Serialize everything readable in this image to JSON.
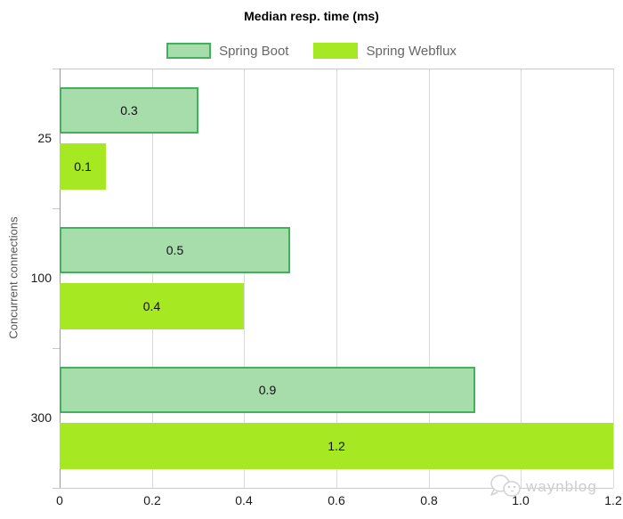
{
  "chart_data": {
    "type": "bar",
    "orientation": "horizontal",
    "title": "Median resp. time (ms)",
    "xlabel": "",
    "ylabel": "Concurrent connections",
    "categories": [
      "25",
      "100",
      "300"
    ],
    "series": [
      {
        "name": "Spring Boot",
        "values": [
          0.3,
          0.5,
          0.9
        ],
        "fill": "#a7dcab",
        "border": "#43b05c"
      },
      {
        "name": "Spring Webflux",
        "values": [
          0.1,
          0.4,
          1.2
        ],
        "fill": "#a6e822",
        "border": "#a6e822"
      }
    ],
    "xlim": [
      0,
      1.2
    ],
    "x_ticks": [
      "0",
      "0.2",
      "0.4",
      "0.6",
      "0.8",
      "1.0",
      "1.2"
    ],
    "grid": "vertical-only",
    "legend_position": "top-center",
    "bar_labels": true
  },
  "watermark": {
    "text": "waynblog",
    "icon": "chick-doodle-icon",
    "color": "#cdcdcd"
  },
  "colors": {
    "background": "#ffffff",
    "gridline": "#d9d9d9",
    "frame": "#c9c9c9",
    "y_axis": "#999999",
    "tick_text": "#1a1a1a",
    "legend_text": "#666666",
    "axis_title_text": "#555555"
  }
}
